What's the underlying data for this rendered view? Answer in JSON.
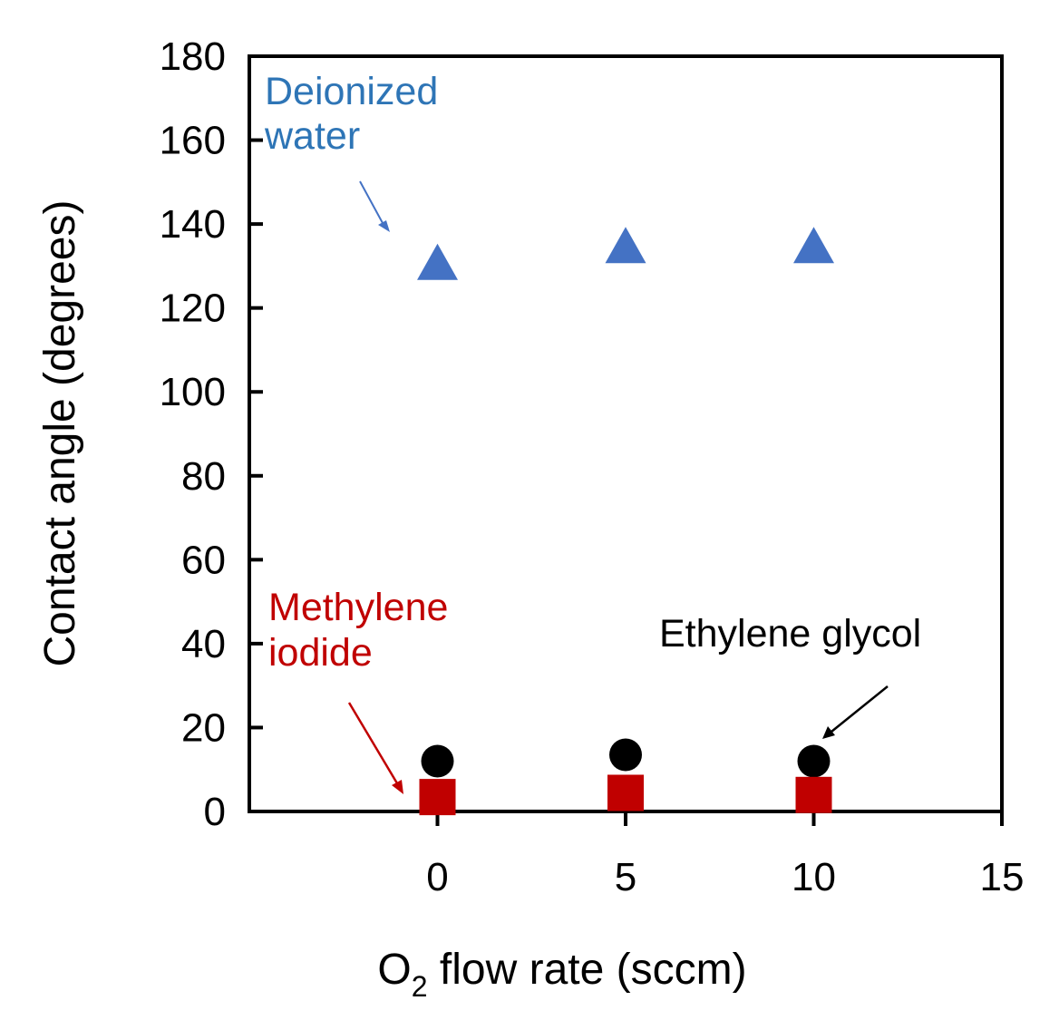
{
  "chart_data": {
    "type": "scatter",
    "title": "",
    "xlabel": "O2 flow rate (sccm)",
    "xlabel_parts": {
      "main": "O",
      "sub": "2",
      "rest": " flow rate (sccm)"
    },
    "ylabel": "Contact angle (degrees)",
    "xlim": [
      -5,
      15
    ],
    "ylim": [
      0,
      180
    ],
    "xticks": [
      0,
      5,
      10,
      15
    ],
    "yticks": [
      0,
      20,
      40,
      60,
      80,
      100,
      120,
      140,
      160,
      180
    ],
    "grid": false,
    "legend": "none",
    "series": [
      {
        "name": "Deionized water",
        "marker": "triangle",
        "color": "#4472c4",
        "x": [
          0,
          5,
          10
        ],
        "y": [
          131,
          135,
          135
        ]
      },
      {
        "name": "Ethylene glycol",
        "marker": "circle",
        "color": "#000000",
        "x": [
          0,
          5,
          10
        ],
        "y": [
          12,
          13.5,
          12
        ]
      },
      {
        "name": "Methylene iodide",
        "marker": "square",
        "color": "#c00000",
        "x": [
          0,
          5,
          10
        ],
        "y": [
          3,
          4,
          3.5
        ]
      }
    ],
    "annotations": [
      {
        "lines": [
          "Deionized",
          "water"
        ],
        "color": "#2e75b6",
        "series": "Deionized water"
      },
      {
        "lines": [
          "Methylene",
          "iodide"
        ],
        "color": "#c00000",
        "series": "Methylene iodide"
      },
      {
        "lines": [
          "Ethylene glycol"
        ],
        "color": "#000000",
        "series": "Ethylene glycol"
      }
    ]
  }
}
